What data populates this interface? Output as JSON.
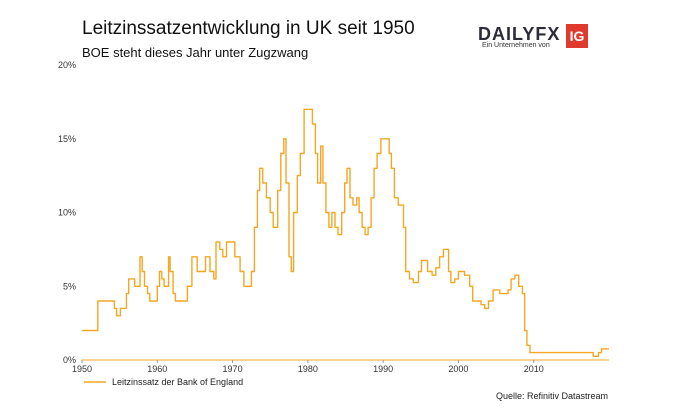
{
  "header": {
    "title": "Leitzinssatzentwicklung in UK seit 1950",
    "subtitle": "BOE steht dieses Jahr unter Zugzwang"
  },
  "logo": {
    "word": "DAILYFX",
    "tagline": "Ein Unternehmen von",
    "mark": "IG"
  },
  "source": "Quelle: Refinitiv Datastream",
  "colors": {
    "line": "#f5a623",
    "logo_red": "#e03a2f"
  },
  "chart_data": {
    "type": "line",
    "title": "Leitzinssatzentwicklung in UK seit 1950",
    "subtitle": "BOE steht dieses Jahr unter Zugzwang",
    "xlabel": "",
    "ylabel": "",
    "xlim": [
      1950,
      2020
    ],
    "ylim": [
      0,
      20
    ],
    "x_ticks": [
      "1950",
      "1960",
      "1970",
      "1980",
      "1990",
      "2000",
      "2010"
    ],
    "x_tick_values": [
      1950,
      1960,
      1970,
      1980,
      1990,
      2000,
      2010
    ],
    "y_ticks": [
      "0%",
      "5%",
      "10%",
      "15%",
      "20%"
    ],
    "y_tick_values": [
      0,
      5,
      10,
      15,
      20
    ],
    "grid": false,
    "legend": "bottom-left",
    "series": [
      {
        "name": "Leitzinssatz der Bank of England",
        "x": [
          1950,
          1951.8,
          1952.1,
          1953.6,
          1954.3,
          1954.6,
          1955.1,
          1955.9,
          1956.2,
          1957.0,
          1957.7,
          1958.0,
          1958.3,
          1958.7,
          1959.0,
          1960.0,
          1960.3,
          1960.6,
          1960.9,
          1961.5,
          1961.7,
          1962.1,
          1962.4,
          1963.0,
          1964.0,
          1964.6,
          1965.3,
          1966.0,
          1966.4,
          1967.0,
          1967.5,
          1967.8,
          1968.3,
          1968.7,
          1969.2,
          1969.9,
          1970.3,
          1971.0,
          1971.5,
          1972.0,
          1972.5,
          1972.9,
          1973.3,
          1973.6,
          1974.0,
          1974.5,
          1975.0,
          1975.4,
          1976.0,
          1976.4,
          1976.8,
          1977.1,
          1977.5,
          1977.8,
          1978.1,
          1978.6,
          1979.0,
          1979.5,
          1979.9,
          1980.6,
          1981.0,
          1981.3,
          1981.7,
          1982.0,
          1982.4,
          1982.8,
          1983.2,
          1983.6,
          1984.0,
          1984.5,
          1984.9,
          1985.2,
          1985.6,
          1986.0,
          1986.5,
          1986.8,
          1987.2,
          1987.6,
          1988.0,
          1988.4,
          1988.8,
          1989.2,
          1989.7,
          1990.3,
          1990.8,
          1991.1,
          1991.5,
          1992.0,
          1992.7,
          1993.0,
          1993.5,
          1994.0,
          1994.7,
          1995.1,
          1995.9,
          1996.5,
          1997.0,
          1997.5,
          1998.0,
          1998.7,
          1999.0,
          1999.5,
          2000.0,
          2000.8,
          2001.5,
          2001.9,
          2003.0,
          2003.5,
          2004.0,
          2004.6,
          2005.5,
          2006.0,
          2006.6,
          2007.0,
          2007.5,
          2008.0,
          2008.5,
          2008.8,
          2009.1,
          2009.5,
          2016.6,
          2017.9,
          2018.6,
          2019.0,
          2020
        ],
        "values": [
          2,
          2,
          4,
          4,
          3.5,
          3,
          3.5,
          4.5,
          5.5,
          5,
          7,
          6,
          5,
          4.5,
          4,
          5,
          6,
          5.5,
          5,
          7,
          6,
          4.5,
          4,
          4,
          5,
          7,
          6,
          6,
          7,
          6,
          5.5,
          8,
          7.5,
          7,
          8,
          8,
          7,
          6,
          5,
          5,
          6,
          9,
          11.5,
          13,
          12,
          11,
          10,
          9,
          11.5,
          14,
          15,
          12,
          7,
          6,
          10,
          12.5,
          14,
          17,
          17,
          16,
          14,
          12,
          14.5,
          12,
          10,
          9,
          10,
          9,
          8.5,
          10,
          12,
          13,
          11,
          10.5,
          11,
          10,
          9,
          8.5,
          9,
          11,
          13,
          14,
          15,
          15,
          14,
          13,
          11,
          10.5,
          9,
          6,
          5.5,
          5.25,
          6,
          6.75,
          6,
          5.75,
          6.25,
          7,
          7.5,
          6,
          5.25,
          5.5,
          6,
          5.75,
          5,
          4,
          3.75,
          3.5,
          4,
          4.75,
          4.5,
          4.5,
          4.75,
          5.5,
          5.75,
          5,
          4.5,
          2,
          1,
          0.5,
          0.5,
          0.25,
          0.5,
          0.75,
          0.75
        ]
      }
    ]
  }
}
